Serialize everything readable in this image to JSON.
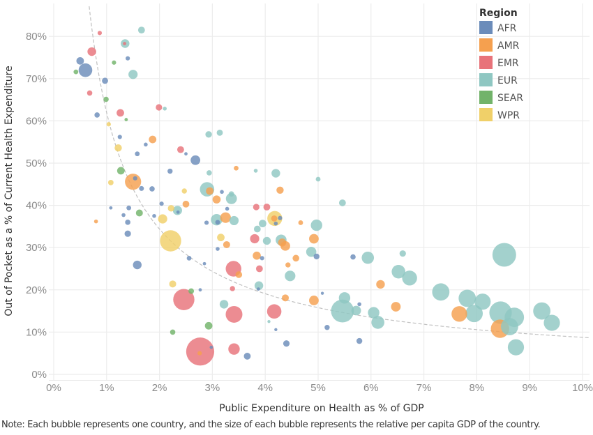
{
  "chart_data": {
    "type": "scatter",
    "subtype": "bubble",
    "title": "",
    "xlabel": "Public Expenditure on Health as % of GDP",
    "ylabel": "Out of Pocket as a % of Current Health Expenditure",
    "xlim": [
      -0.15,
      10.2
    ],
    "ylim": [
      -2,
      87
    ],
    "x_ticks": [
      "0%",
      "1%",
      "2%",
      "3%",
      "4%",
      "5%",
      "6%",
      "7%",
      "8%",
      "9%",
      "10%"
    ],
    "y_ticks": [
      "0%",
      "10%",
      "20%",
      "30%",
      "40%",
      "50%",
      "60%",
      "70%",
      "80%"
    ],
    "x_tick_values": [
      0,
      1,
      2,
      3,
      4,
      5,
      6,
      7,
      8,
      9,
      10
    ],
    "y_tick_values": [
      0,
      10,
      20,
      30,
      40,
      50,
      60,
      70,
      80
    ],
    "grid": true,
    "legend": {
      "title": "Region",
      "position": "top-right",
      "entries": [
        {
          "name": "AFR",
          "color": "#6b8cba"
        },
        {
          "name": "AMR",
          "color": "#f5a04f"
        },
        {
          "name": "EMR",
          "color": "#e8737a"
        },
        {
          "name": "EUR",
          "color": "#8fc7c2"
        },
        {
          "name": "SEAR",
          "color": "#72b36a"
        },
        {
          "name": "WPR",
          "color": "#f0d069"
        }
      ]
    },
    "trendline": {
      "type": "power",
      "style": "dashed",
      "color": "#c0c0c0",
      "coefficient": 62,
      "exponent": -0.85
    },
    "size_encoding": "relative per capita GDP",
    "series": [
      {
        "name": "AFR",
        "points": [
          [
            0.5,
            74.2,
            3
          ],
          [
            0.6,
            72,
            10
          ],
          [
            0.97,
            69.5,
            2
          ],
          [
            0.82,
            61.4,
            1.5
          ],
          [
            1.4,
            74.8,
            1
          ],
          [
            1.25,
            56.2,
            1
          ],
          [
            1.58,
            52.2,
            1.2
          ],
          [
            1.74,
            54.4,
            0.8
          ],
          [
            1.86,
            43.9,
            1.5
          ],
          [
            1.66,
            44.0,
            1.3
          ],
          [
            2.2,
            48.1,
            1.4
          ],
          [
            2.68,
            50.7,
            5
          ],
          [
            2.5,
            52.2,
            0.6
          ],
          [
            1.54,
            46.4,
            1
          ],
          [
            1.42,
            39.4,
            1.2
          ],
          [
            1.4,
            36.0,
            1.5
          ],
          [
            1.4,
            33.3,
            2.2
          ],
          [
            1.58,
            25.9,
            4
          ],
          [
            1.08,
            39.4,
            0.6
          ],
          [
            1.32,
            37.7,
            0.8
          ],
          [
            1.9,
            37.5,
            0.8
          ],
          [
            2.04,
            40.4,
            1
          ],
          [
            2.35,
            38.4,
            0.6
          ],
          [
            2.56,
            27.5,
            1.2
          ],
          [
            2.85,
            26.2,
            0.6
          ],
          [
            3.1,
            29.7,
            0.8
          ],
          [
            2.89,
            35.9,
            1
          ],
          [
            3.1,
            36.0,
            1.2
          ],
          [
            3.18,
            43.2,
            0.8
          ],
          [
            3.28,
            39.2,
            0.8
          ],
          [
            2.77,
            20.0,
            0.6
          ],
          [
            2.98,
            6.4,
            0.6
          ],
          [
            3.66,
            4.3,
            2.5
          ],
          [
            3.87,
            20.2,
            0.6
          ],
          [
            3.94,
            27.5,
            1
          ],
          [
            4.2,
            10.6,
            0.5
          ],
          [
            4.4,
            7.3,
            2.2
          ],
          [
            4.2,
            35.7,
            0.8
          ],
          [
            4.28,
            37.0,
            1
          ],
          [
            5.08,
            19.2,
            0.5
          ],
          [
            5.17,
            11.1,
            1.4
          ],
          [
            5.66,
            27.8,
            1.5
          ],
          [
            5.78,
            16.6,
            0.8
          ],
          [
            5.78,
            7.9,
            1.8
          ],
          [
            4.97,
            27.9,
            1.8
          ]
        ]
      },
      {
        "name": "AMR",
        "points": [
          [
            0.8,
            36.2,
            0.8
          ],
          [
            1.5,
            45.6,
            14
          ],
          [
            1.87,
            55.6,
            3
          ],
          [
            2.5,
            40.3,
            2.5
          ],
          [
            2.95,
            43.4,
            3
          ],
          [
            3.08,
            41.4,
            3.5
          ],
          [
            3.25,
            37.1,
            6
          ],
          [
            3.27,
            30.7,
            2.6
          ],
          [
            3.45,
            48.8,
            1.2
          ],
          [
            3.5,
            23.6,
            2.4
          ],
          [
            3.84,
            28.1,
            3.5
          ],
          [
            4.28,
            43.6,
            2.8
          ],
          [
            4.32,
            31.2,
            3.5
          ],
          [
            4.38,
            30.4,
            5
          ],
          [
            4.38,
            18.1,
            2.6
          ],
          [
            4.43,
            25.9,
            1.4
          ],
          [
            4.58,
            27.5,
            2.4
          ],
          [
            4.67,
            35.9,
            1.2
          ],
          [
            4.92,
            32.1,
            5
          ],
          [
            4.92,
            17.5,
            5
          ],
          [
            4.17,
            36.9,
            2
          ],
          [
            6.18,
            21.3,
            4
          ],
          [
            6.47,
            16.0,
            5
          ],
          [
            7.67,
            14.3,
            13
          ],
          [
            8.44,
            10.8,
            18
          ],
          [
            2.76,
            5.0,
            1
          ]
        ]
      },
      {
        "name": "EMR",
        "points": [
          [
            0.87,
            80.8,
            1
          ],
          [
            0.72,
            76.4,
            4
          ],
          [
            0.68,
            66.6,
            1.5
          ],
          [
            1.26,
            61.9,
            3
          ],
          [
            1.34,
            78.3,
            0.6
          ],
          [
            1.99,
            63.2,
            2.2
          ],
          [
            2.4,
            53.2,
            2.5
          ],
          [
            2.46,
            17.7,
            24
          ],
          [
            2.77,
            5.4,
            42
          ],
          [
            3.4,
            25.0,
            13
          ],
          [
            3.41,
            14.2,
            15
          ],
          [
            3.41,
            6.0,
            7
          ],
          [
            3.38,
            20.3,
            1.4
          ],
          [
            3.8,
            32.1,
            4.5
          ],
          [
            3.89,
            25.0,
            2.5
          ],
          [
            3.83,
            39.6,
            2.2
          ],
          [
            4.03,
            39.6,
            2.5
          ],
          [
            4.17,
            14.9,
            11
          ]
        ]
      },
      {
        "name": "EUR",
        "points": [
          [
            1.35,
            78.3,
            4
          ],
          [
            1.66,
            81.5,
            2.5
          ],
          [
            1.5,
            71.0,
            4.5
          ],
          [
            2.1,
            62.9,
            0.8
          ],
          [
            2.93,
            56.8,
            2.3
          ],
          [
            3.14,
            57.2,
            2
          ],
          [
            2.94,
            47.7,
            1.5
          ],
          [
            2.9,
            43.8,
            11
          ],
          [
            3.36,
            41.6,
            6.5
          ],
          [
            3.36,
            42.7,
            1.6
          ],
          [
            3.08,
            36.6,
            7
          ],
          [
            3.41,
            36.4,
            4.5
          ],
          [
            3.82,
            48.2,
            0.8
          ],
          [
            4.2,
            47.6,
            4
          ],
          [
            2.34,
            38.8,
            4.5
          ],
          [
            3.22,
            16.6,
            4
          ],
          [
            3.85,
            34.4,
            2.5
          ],
          [
            3.95,
            35.7,
            3
          ],
          [
            4.03,
            31.6,
            3.4
          ],
          [
            4.3,
            31.8,
            6.4
          ],
          [
            3.88,
            21.0,
            4
          ],
          [
            4.47,
            23.3,
            6
          ],
          [
            4.87,
            29.0,
            5.5
          ],
          [
            4.97,
            35.3,
            7
          ],
          [
            5.0,
            46.2,
            1.2
          ],
          [
            5.46,
            40.6,
            2.5
          ],
          [
            5.46,
            15.0,
            28
          ],
          [
            5.5,
            18.1,
            7
          ],
          [
            5.72,
            15.1,
            5
          ],
          [
            5.94,
            27.6,
            8
          ],
          [
            6.05,
            14.6,
            7
          ],
          [
            6.13,
            12.3,
            9
          ],
          [
            6.52,
            24.3,
            10
          ],
          [
            6.6,
            28.6,
            2.2
          ],
          [
            6.73,
            22.8,
            12
          ],
          [
            7.32,
            19.5,
            16
          ],
          [
            7.82,
            18.0,
            16
          ],
          [
            7.95,
            14.4,
            16
          ],
          [
            8.11,
            17.2,
            14
          ],
          [
            8.45,
            14.6,
            27
          ],
          [
            8.52,
            28.3,
            30
          ],
          [
            8.71,
            13.5,
            20
          ],
          [
            8.62,
            11.3,
            16
          ],
          [
            8.74,
            6.4,
            14
          ],
          [
            9.23,
            15.0,
            16
          ],
          [
            9.42,
            12.2,
            14
          ],
          [
            4.07,
            12.5,
            0.5
          ]
        ]
      },
      {
        "name": "SEAR",
        "points": [
          [
            0.42,
            71.6,
            1.2
          ],
          [
            1.14,
            73.8,
            1
          ],
          [
            0.99,
            65.1,
            1.5
          ],
          [
            1.27,
            48.2,
            3
          ],
          [
            1.37,
            60.3,
            0.6
          ],
          [
            1.62,
            38.2,
            2.6
          ],
          [
            2.25,
            10.0,
            1.5
          ],
          [
            2.6,
            19.7,
            1.7
          ],
          [
            2.93,
            11.5,
            3
          ]
        ]
      },
      {
        "name": "WPR",
        "points": [
          [
            1.04,
            59.2,
            1
          ],
          [
            1.22,
            53.6,
            2.8
          ],
          [
            1.08,
            45.4,
            1.6
          ],
          [
            2.06,
            36.8,
            4.5
          ],
          [
            2.22,
            39.3,
            2.3
          ],
          [
            2.21,
            31.6,
            24
          ],
          [
            2.25,
            21.4,
            2.6
          ],
          [
            2.47,
            43.4,
            1.4
          ],
          [
            3.16,
            32.4,
            3
          ],
          [
            4.18,
            36.9,
            12
          ]
        ]
      }
    ]
  },
  "note": "Note: Each bubble represents one country, and the size of each bubble represents the relative per capita GDP of the country."
}
